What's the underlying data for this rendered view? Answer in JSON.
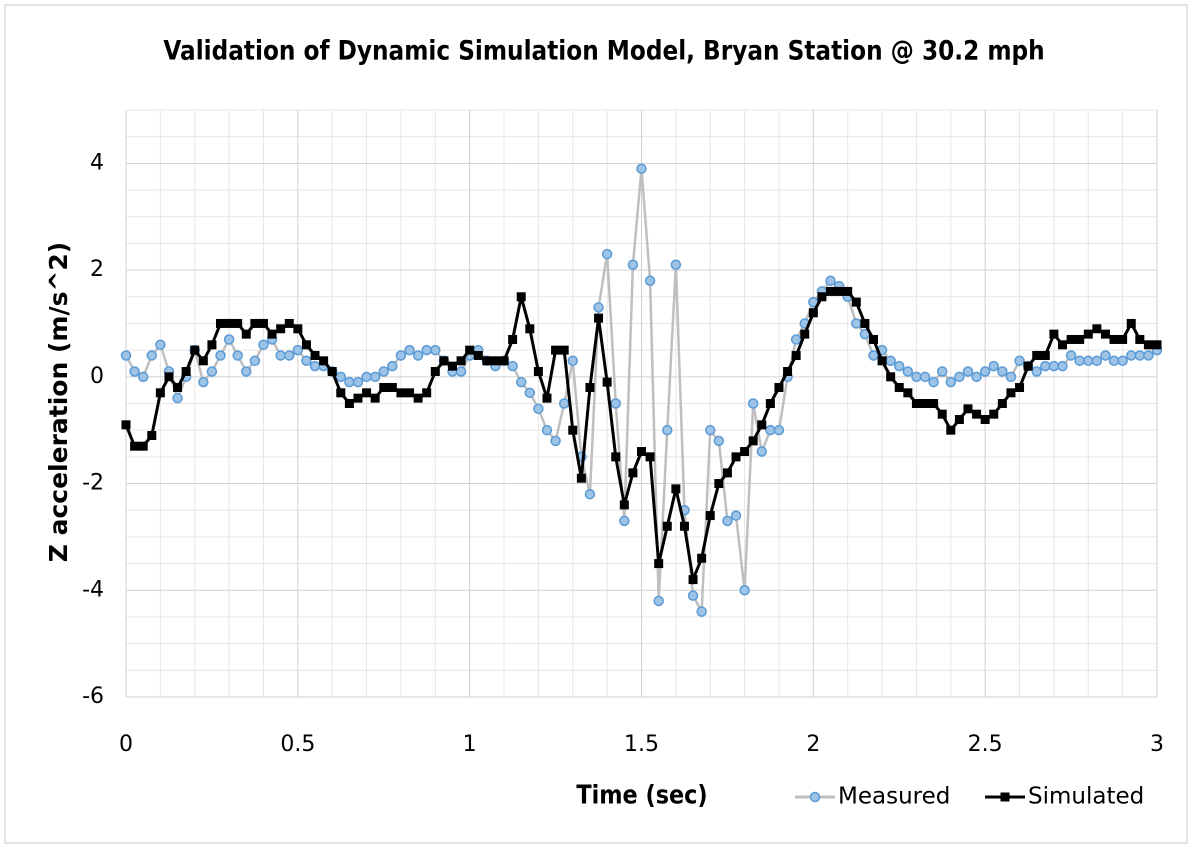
{
  "chart_data": {
    "type": "line",
    "title": "Validation of Dynamic Simulation Model, Bryan Station @ 30.2 mph",
    "x_label": "Time (sec)",
    "y_label": "Z acceleration (m/s^2)",
    "xlim": [
      0,
      3
    ],
    "ylim": [
      -6,
      5
    ],
    "xticks": [
      0,
      0.5,
      1,
      1.5,
      2,
      2.5,
      3
    ],
    "yticks": [
      -6,
      -4,
      -2,
      0,
      2,
      4
    ],
    "x_minor_ticks": [
      0.1,
      0.2,
      0.3,
      0.4,
      0.6,
      0.7,
      0.8,
      0.9,
      1.1,
      1.2,
      1.3,
      1.4,
      1.6,
      1.7,
      1.8,
      1.9,
      2.1,
      2.2,
      2.3,
      2.4,
      2.6,
      2.7,
      2.8,
      2.9
    ],
    "y_minor_ticks": [
      -5.5,
      -5,
      -4.5,
      -3.5,
      -3,
      -2.5,
      -1.5,
      -1,
      -0.5,
      0.5,
      1,
      1.5,
      2.5,
      3,
      3.5,
      4.5,
      5
    ],
    "grid": true,
    "legend": "bottom-right",
    "x": [
      0,
      0.025,
      0.05,
      0.075,
      0.1,
      0.125,
      0.15,
      0.175,
      0.2,
      0.225,
      0.25,
      0.275,
      0.3,
      0.325,
      0.35,
      0.375,
      0.4,
      0.425,
      0.45,
      0.475,
      0.5,
      0.525,
      0.55,
      0.575,
      0.6,
      0.625,
      0.65,
      0.675,
      0.7,
      0.725,
      0.75,
      0.775,
      0.8,
      0.825,
      0.85,
      0.875,
      0.9,
      0.925,
      0.95,
      0.975,
      1,
      1.025,
      1.05,
      1.075,
      1.1,
      1.125,
      1.15,
      1.175,
      1.2,
      1.225,
      1.25,
      1.275,
      1.3,
      1.325,
      1.35,
      1.375,
      1.4,
      1.425,
      1.45,
      1.475,
      1.5,
      1.525,
      1.55,
      1.575,
      1.6,
      1.625,
      1.65,
      1.675,
      1.7,
      1.725,
      1.75,
      1.775,
      1.8,
      1.825,
      1.85,
      1.875,
      1.9,
      1.925,
      1.95,
      1.975,
      2,
      2.025,
      2.05,
      2.075,
      2.1,
      2.125,
      2.15,
      2.175,
      2.2,
      2.225,
      2.25,
      2.275,
      2.3,
      2.325,
      2.35,
      2.375,
      2.4,
      2.425,
      2.45,
      2.475,
      2.5,
      2.525,
      2.55,
      2.575,
      2.6,
      2.625,
      2.65,
      2.675,
      2.7,
      2.725,
      2.75,
      2.775,
      2.8,
      2.825,
      2.85,
      2.875,
      2.9,
      2.925,
      2.95,
      2.975,
      3
    ],
    "series": [
      {
        "name": "Measured",
        "color": "#bfbfbf",
        "marker": "circle",
        "marker_fill": "#9dc3e6",
        "marker_stroke": "#5b9bd5",
        "values": [
          0.4,
          0.1,
          0.0,
          0.4,
          0.6,
          0.1,
          -0.4,
          0.0,
          0.5,
          -0.1,
          0.1,
          0.4,
          0.7,
          0.4,
          0.1,
          0.3,
          0.6,
          0.7,
          0.4,
          0.4,
          0.5,
          0.3,
          0.2,
          0.2,
          0.1,
          0.0,
          -0.1,
          -0.1,
          0.0,
          0.0,
          0.1,
          0.2,
          0.4,
          0.5,
          0.4,
          0.5,
          0.5,
          0.3,
          0.1,
          0.1,
          0.4,
          0.5,
          0.3,
          0.2,
          0.3,
          0.2,
          -0.1,
          -0.3,
          -0.6,
          -1.0,
          -1.2,
          -0.5,
          0.3,
          -1.5,
          -2.2,
          1.3,
          2.3,
          -0.5,
          -2.7,
          2.1,
          3.9,
          1.8,
          -4.2,
          -1.0,
          2.1,
          -2.5,
          -4.1,
          -4.4,
          -1.0,
          -1.2,
          -2.7,
          -2.6,
          -4.0,
          -0.5,
          -1.4,
          -1.0,
          -1.0,
          0.0,
          0.7,
          1.0,
          1.4,
          1.6,
          1.8,
          1.7,
          1.5,
          1.0,
          0.8,
          0.4,
          0.5,
          0.3,
          0.2,
          0.1,
          0.0,
          0.0,
          -0.1,
          0.1,
          -0.1,
          0.0,
          0.1,
          0.0,
          0.1,
          0.2,
          0.1,
          0.0,
          0.3,
          0.2,
          0.1,
          0.2,
          0.2,
          0.2,
          0.4,
          0.3,
          0.3,
          0.3,
          0.4,
          0.3,
          0.3,
          0.4,
          0.4,
          0.4,
          0.5
        ]
      },
      {
        "name": "Simulated",
        "color": "#000000",
        "marker": "square",
        "marker_fill": "#000000",
        "marker_stroke": "#000000",
        "values": [
          -0.9,
          -1.3,
          -1.3,
          -1.1,
          -0.3,
          0.0,
          -0.2,
          0.1,
          0.5,
          0.3,
          0.6,
          1.0,
          1.0,
          1.0,
          0.8,
          1.0,
          1.0,
          0.8,
          0.9,
          1.0,
          0.9,
          0.6,
          0.4,
          0.3,
          0.1,
          -0.3,
          -0.5,
          -0.4,
          -0.3,
          -0.4,
          -0.2,
          -0.2,
          -0.3,
          -0.3,
          -0.4,
          -0.3,
          0.1,
          0.3,
          0.2,
          0.3,
          0.5,
          0.4,
          0.3,
          0.3,
          0.3,
          0.7,
          1.5,
          0.9,
          0.1,
          -0.4,
          0.5,
          0.5,
          -1.0,
          -1.9,
          -0.2,
          1.1,
          -0.1,
          -1.5,
          -2.4,
          -1.8,
          -1.4,
          -1.5,
          -3.5,
          -2.8,
          -2.1,
          -2.8,
          -3.8,
          -3.4,
          -2.6,
          -2.0,
          -1.8,
          -1.5,
          -1.4,
          -1.2,
          -0.9,
          -0.5,
          -0.2,
          0.1,
          0.4,
          0.8,
          1.2,
          1.5,
          1.6,
          1.6,
          1.6,
          1.4,
          1.0,
          0.7,
          0.3,
          0.0,
          -0.2,
          -0.3,
          -0.5,
          -0.5,
          -0.5,
          -0.7,
          -1.0,
          -0.8,
          -0.6,
          -0.7,
          -0.8,
          -0.7,
          -0.5,
          -0.3,
          -0.2,
          0.2,
          0.4,
          0.4,
          0.8,
          0.6,
          0.7,
          0.7,
          0.8,
          0.9,
          0.8,
          0.7,
          0.7,
          1.0,
          0.7,
          0.6,
          0.6
        ]
      }
    ]
  }
}
